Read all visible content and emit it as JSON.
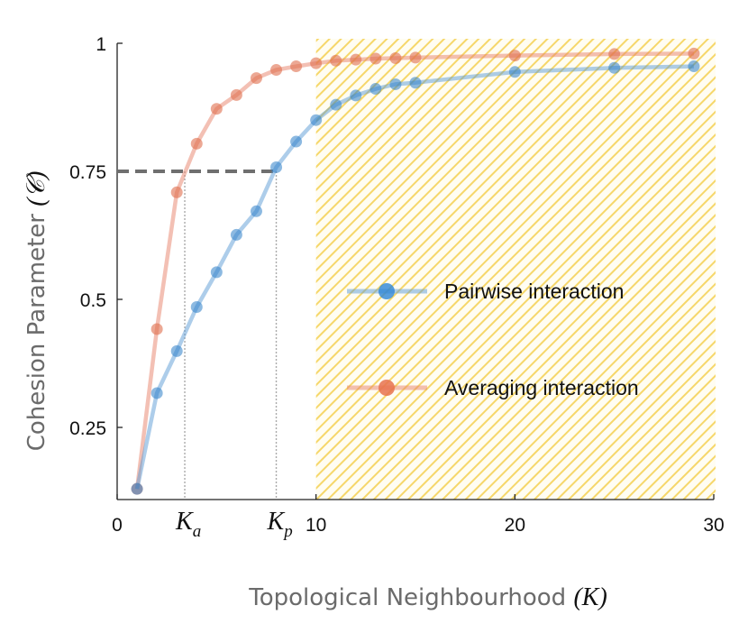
{
  "chart_data": {
    "type": "line",
    "xlabel": "Topological Neighbourhood",
    "xlabel_symbol": "(K)",
    "ylabel": "Cohesion Parameter",
    "ylabel_symbol": "(𝒞)",
    "xlim": [
      0,
      30
    ],
    "ylim": [
      0.115,
      1.0
    ],
    "xticks": [
      0,
      10,
      20,
      30
    ],
    "xtick_labels": [
      "0",
      "10",
      "20",
      "30"
    ],
    "yticks": [
      0.25,
      0.5,
      0.75,
      1
    ],
    "ytick_labels": [
      "0.25",
      "0.5",
      "0.75",
      "1"
    ],
    "shaded_region": {
      "x_from": 10,
      "x_to": 30,
      "color": "#f6d76a",
      "style": "diagonal-hatch"
    },
    "reference_line_y": 0.75,
    "annotations": [
      {
        "x": 3.4,
        "symbol": "K",
        "sub": "a"
      },
      {
        "x": 8.0,
        "symbol": "K",
        "sub": "p"
      }
    ],
    "series": [
      {
        "name": "Pairwise interaction",
        "color": "#5b9bd5",
        "x": [
          1,
          2,
          3,
          4,
          5,
          6,
          7,
          8,
          9,
          10,
          11,
          12,
          13,
          14,
          15,
          20,
          25,
          29
        ],
        "values": [
          0.13,
          0.317,
          0.399,
          0.485,
          0.553,
          0.626,
          0.672,
          0.758,
          0.808,
          0.85,
          0.88,
          0.898,
          0.911,
          0.92,
          0.923,
          0.944,
          0.952,
          0.955
        ]
      },
      {
        "name": "Averaging interaction",
        "color": "#e8826a",
        "x": [
          1,
          2,
          3,
          4,
          5,
          6,
          7,
          8,
          9,
          10,
          11,
          12,
          13,
          14,
          15,
          20,
          25,
          29
        ],
        "values": [
          0.13,
          0.442,
          0.709,
          0.804,
          0.872,
          0.899,
          0.932,
          0.948,
          0.955,
          0.961,
          0.966,
          0.968,
          0.97,
          0.971,
          0.972,
          0.976,
          0.979,
          0.98
        ]
      }
    ]
  }
}
